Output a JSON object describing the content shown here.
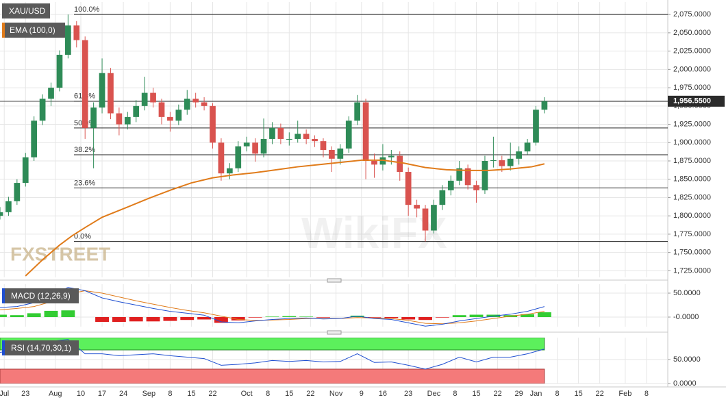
{
  "chart_data": {
    "type": "candlestick",
    "symbol": "XAU/USD",
    "watermarks": [
      "FXSTREET",
      "WikiFX"
    ],
    "colors": {
      "up": "#2e8b57",
      "down": "#d9534f"
    },
    "xlim": [
      0,
      157
    ],
    "xticks": [
      {
        "value": 1,
        "label": "Jul"
      },
      {
        "value": 6,
        "label": "23"
      },
      {
        "value": 13,
        "label": "Aug"
      },
      {
        "value": 19,
        "label": "10"
      },
      {
        "value": 24,
        "label": "17"
      },
      {
        "value": 29,
        "label": "24"
      },
      {
        "value": 35,
        "label": "Sep"
      },
      {
        "value": 40,
        "label": "8"
      },
      {
        "value": 45,
        "label": "15"
      },
      {
        "value": 50,
        "label": "22"
      },
      {
        "value": 58,
        "label": "Oct"
      },
      {
        "value": 63,
        "label": "8"
      },
      {
        "value": 68,
        "label": "15"
      },
      {
        "value": 73,
        "label": "22"
      },
      {
        "value": 79,
        "label": "Nov"
      },
      {
        "value": 85,
        "label": "9"
      },
      {
        "value": 90,
        "label": "16"
      },
      {
        "value": 96,
        "label": "23"
      },
      {
        "value": 102,
        "label": "Dec"
      },
      {
        "value": 107,
        "label": "8"
      },
      {
        "value": 112,
        "label": "15"
      },
      {
        "value": 117,
        "label": "22"
      },
      {
        "value": 122,
        "label": "29"
      },
      {
        "value": 126,
        "label": "Jan"
      },
      {
        "value": 131,
        "label": "8"
      },
      {
        "value": 136,
        "label": "15"
      },
      {
        "value": 141,
        "label": "22"
      },
      {
        "value": 147,
        "label": "Feb"
      },
      {
        "value": 152,
        "label": "8"
      }
    ],
    "ylim": [
      1716,
      2092
    ],
    "yticks": [
      {
        "value": 1725,
        "label": "1,725.0000"
      },
      {
        "value": 1750,
        "label": "1,750.0000"
      },
      {
        "value": 1775,
        "label": "1,775.0000"
      },
      {
        "value": 1800,
        "label": "1,800.0000"
      },
      {
        "value": 1825,
        "label": "1,825.0000"
      },
      {
        "value": 1850,
        "label": "1,850.0000"
      },
      {
        "value": 1875,
        "label": "1,875.0000"
      },
      {
        "value": 1900,
        "label": "1,900.0000"
      },
      {
        "value": 1925,
        "label": "1,925.0000"
      },
      {
        "value": 1950,
        "label": "1,950.0000"
      },
      {
        "value": 1975,
        "label": "1,975.0000"
      },
      {
        "value": 2000,
        "label": "2,000.0000"
      },
      {
        "value": 2025,
        "label": "2,025.0000"
      },
      {
        "value": 2050,
        "label": "2,050.0000"
      },
      {
        "value": 2075,
        "label": "2,075.0000"
      }
    ],
    "grid": true,
    "x": [
      0,
      2,
      4,
      6,
      8,
      10,
      12,
      14,
      16,
      18,
      20,
      22,
      24,
      26,
      28,
      30,
      32,
      34,
      36,
      38,
      40,
      42,
      44,
      46,
      48,
      50,
      52,
      54,
      56,
      58,
      60,
      62,
      64,
      66,
      68,
      70,
      72,
      74,
      76,
      78,
      80,
      82,
      84,
      86,
      88,
      90,
      92,
      94,
      96,
      98,
      100,
      102,
      104,
      106,
      108,
      110,
      112,
      114,
      116,
      118,
      120,
      122,
      124,
      126,
      128
    ],
    "candles": [
      [
        1800,
        1812,
        1795,
        1805
      ],
      [
        1805,
        1826,
        1800,
        1820
      ],
      [
        1820,
        1850,
        1815,
        1845
      ],
      [
        1845,
        1886,
        1840,
        1880
      ],
      [
        1880,
        1936,
        1875,
        1930
      ],
      [
        1930,
        1966,
        1924,
        1960
      ],
      [
        1960,
        1982,
        1950,
        1975
      ],
      [
        1975,
        2026,
        1970,
        2020
      ],
      [
        2020,
        2075,
        2015,
        2060
      ],
      [
        2060,
        2066,
        2030,
        2040
      ],
      [
        2040,
        2045,
        1905,
        1920
      ],
      [
        1920,
        1955,
        1865,
        1948
      ],
      [
        1948,
        2015,
        1940,
        1995
      ],
      [
        1995,
        2002,
        1932,
        1940
      ],
      [
        1940,
        1948,
        1910,
        1925
      ],
      [
        1925,
        1942,
        1918,
        1935
      ],
      [
        1935,
        1958,
        1928,
        1950
      ],
      [
        1950,
        1990,
        1944,
        1968
      ],
      [
        1968,
        1975,
        1948,
        1955
      ],
      [
        1955,
        1960,
        1925,
        1935
      ],
      [
        1935,
        1942,
        1915,
        1930
      ],
      [
        1930,
        1952,
        1924,
        1945
      ],
      [
        1945,
        1972,
        1938,
        1960
      ],
      [
        1960,
        1968,
        1948,
        1955
      ],
      [
        1955,
        1962,
        1944,
        1950
      ],
      [
        1950,
        1954,
        1892,
        1900
      ],
      [
        1900,
        1906,
        1848,
        1858
      ],
      [
        1858,
        1872,
        1850,
        1865
      ],
      [
        1865,
        1902,
        1860,
        1895
      ],
      [
        1895,
        1908,
        1888,
        1900
      ],
      [
        1900,
        1906,
        1874,
        1885
      ],
      [
        1885,
        1933,
        1880,
        1905
      ],
      [
        1905,
        1928,
        1898,
        1920
      ],
      [
        1920,
        1926,
        1898,
        1905
      ],
      [
        1905,
        1914,
        1896,
        1905
      ],
      [
        1905,
        1930,
        1900,
        1912
      ],
      [
        1912,
        1918,
        1898,
        1905
      ],
      [
        1905,
        1910,
        1894,
        1902
      ],
      [
        1902,
        1906,
        1880,
        1890
      ],
      [
        1890,
        1895,
        1860,
        1878
      ],
      [
        1878,
        1898,
        1870,
        1892
      ],
      [
        1892,
        1936,
        1886,
        1930
      ],
      [
        1930,
        1965,
        1924,
        1955
      ],
      [
        1955,
        1960,
        1850,
        1875
      ],
      [
        1875,
        1885,
        1852,
        1870
      ],
      [
        1870,
        1898,
        1862,
        1880
      ],
      [
        1880,
        1890,
        1870,
        1882
      ],
      [
        1882,
        1888,
        1848,
        1860
      ],
      [
        1860,
        1866,
        1800,
        1815
      ],
      [
        1815,
        1822,
        1798,
        1810
      ],
      [
        1810,
        1815,
        1765,
        1780
      ],
      [
        1780,
        1822,
        1776,
        1815
      ],
      [
        1815,
        1842,
        1808,
        1835
      ],
      [
        1835,
        1855,
        1828,
        1848
      ],
      [
        1848,
        1875,
        1842,
        1865
      ],
      [
        1865,
        1870,
        1836,
        1842
      ],
      [
        1842,
        1848,
        1818,
        1835
      ],
      [
        1835,
        1882,
        1830,
        1875
      ],
      [
        1875,
        1908,
        1866,
        1876
      ],
      [
        1876,
        1882,
        1860,
        1868
      ],
      [
        1868,
        1900,
        1862,
        1878
      ],
      [
        1878,
        1895,
        1870,
        1888
      ],
      [
        1888,
        1905,
        1884,
        1900
      ],
      [
        1900,
        1950,
        1896,
        1945
      ],
      [
        1945,
        1962,
        1940,
        1956.55
      ]
    ],
    "ema": {
      "name": "EMA (100,0)",
      "color": "#e07b1a",
      "x": [
        6,
        10,
        14,
        17,
        20,
        24,
        30,
        35,
        40,
        45,
        50,
        55,
        60,
        65,
        70,
        75,
        80,
        85,
        90,
        95,
        100,
        105,
        110,
        115,
        120,
        125,
        128
      ],
      "values": [
        1718,
        1740,
        1760,
        1773,
        1784,
        1798,
        1812,
        1824,
        1835,
        1845,
        1852,
        1856,
        1859,
        1863,
        1867,
        1870,
        1873,
        1876,
        1876,
        1872,
        1866,
        1863,
        1862,
        1862,
        1864,
        1867,
        1871
      ]
    },
    "fib": [
      {
        "label": "100.0%",
        "value": 2075
      },
      {
        "label": "61.8%",
        "value": 1956.58
      },
      {
        "label": "50.0%",
        "value": 1920
      },
      {
        "label": "38.2%",
        "value": 1883.42
      },
      {
        "label": "23.6%",
        "value": 1838.16
      },
      {
        "label": "0.0%",
        "value": 1765
      }
    ],
    "last_price": {
      "value": 1956.55,
      "label": "1,956.5500"
    },
    "macd": {
      "name": "MACD (12,26,9)",
      "x": [
        0,
        4,
        8,
        12,
        16,
        20,
        24,
        28,
        32,
        36,
        40,
        44,
        48,
        52,
        56,
        60,
        64,
        68,
        72,
        76,
        80,
        84,
        88,
        92,
        96,
        100,
        104,
        108,
        112,
        116,
        120,
        124,
        128
      ],
      "ylim": [
        -20,
        68.6
      ],
      "yticks": [
        {
          "value": 50,
          "label": "50.0000"
        },
        {
          "value": 0,
          "label": "-0.0000"
        }
      ],
      "macd_line": {
        "color": "#1f4fd1",
        "values": [
          20,
          22,
          30,
          45,
          62,
          55,
          40,
          32,
          25,
          18,
          12,
          8,
          4,
          -10,
          -12,
          -8,
          -5,
          -3,
          -2,
          -4,
          -3,
          2,
          -3,
          -5,
          -12,
          -19,
          -15,
          -8,
          -3,
          2,
          6,
          12,
          22
        ]
      },
      "signal": {
        "color": "#e07b1a",
        "values": [
          15,
          18,
          22,
          32,
          48,
          55,
          50,
          42,
          34,
          27,
          20,
          14,
          9,
          2,
          -5,
          -7,
          -6,
          -5,
          -3,
          -3,
          -3,
          -1,
          -2,
          -3,
          -7,
          -13,
          -14,
          -12,
          -8,
          -3,
          2,
          6,
          12
        ]
      },
      "histogram": {
        "up_color": "#33cc33",
        "down_color": "#e02020",
        "values": [
          5,
          4,
          8,
          13,
          14,
          0,
          -10,
          -10,
          -9,
          -9,
          -8,
          -6,
          -5,
          -12,
          -7,
          -1,
          1,
          2,
          1,
          -1,
          0,
          3,
          -1,
          -2,
          -5,
          -6,
          -1,
          4,
          5,
          5,
          4,
          6,
          10
        ]
      }
    },
    "rsi": {
      "name": "RSI (14,70,30,1)",
      "color": "#1f4fd1",
      "x": [
        0,
        4,
        8,
        12,
        16,
        20,
        24,
        28,
        32,
        36,
        40,
        44,
        48,
        52,
        56,
        60,
        64,
        68,
        72,
        76,
        80,
        84,
        88,
        92,
        96,
        100,
        104,
        108,
        112,
        116,
        120,
        124,
        128
      ],
      "values": [
        65,
        70,
        80,
        88,
        92,
        62,
        62,
        58,
        60,
        62,
        58,
        55,
        52,
        38,
        40,
        43,
        48,
        46,
        48,
        45,
        46,
        62,
        44,
        45,
        38,
        30,
        40,
        55,
        45,
        55,
        55,
        62,
        72
      ],
      "ylim": [
        0,
        95.7
      ],
      "yticks": [
        {
          "value": 50,
          "label": "50.0000"
        },
        {
          "value": 0,
          "label": "0.0000"
        }
      ],
      "upper": 70,
      "lower": 30,
      "upper_color": "#5cf05c",
      "lower_color": "#f47a7a"
    }
  }
}
